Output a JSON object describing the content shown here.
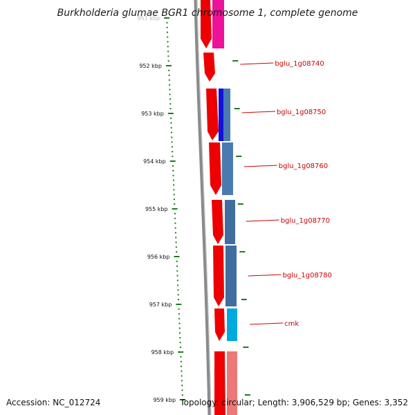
{
  "title": "Burkholderia glumae BGR1 chromosome 1, complete genome",
  "footer": {
    "accession": "Accession: NC_012724",
    "topology": "Topology: circular; Length: 3,906,529 bp; Genes: 3,352"
  },
  "scale_ticks": [
    {
      "kbp": 951,
      "label": "951 kbp",
      "faded": true
    },
    {
      "kbp": 952,
      "label": "952 kbp"
    },
    {
      "kbp": 953,
      "label": "953 kbp"
    },
    {
      "kbp": 954,
      "label": "954 kbp"
    },
    {
      "kbp": 955,
      "label": "955 kbp"
    },
    {
      "kbp": 956,
      "label": "956 kbp"
    },
    {
      "kbp": 957,
      "label": "957 kbp"
    },
    {
      "kbp": 958,
      "label": "958 kbp"
    },
    {
      "kbp": 959,
      "label": "959 kbp"
    }
  ],
  "genes": [
    {
      "label": "bglu_1g08740"
    },
    {
      "label": "bglu_1g08750"
    },
    {
      "label": "bglu_1g08760"
    },
    {
      "label": "bglu_1g08770"
    },
    {
      "label": "bglu_1g08780"
    },
    {
      "label": "cmk"
    }
  ],
  "colors": {
    "backbone": "#8a8a8a",
    "gene_red": "#ee0000",
    "tick_green": "#1a7a1a",
    "magenta": "#ee1199",
    "blue": "#1111dd",
    "steel_blue": "#4a7ab0",
    "cyan": "#00aadd",
    "pink": "#ee7777",
    "label_red": "#cc0000"
  }
}
